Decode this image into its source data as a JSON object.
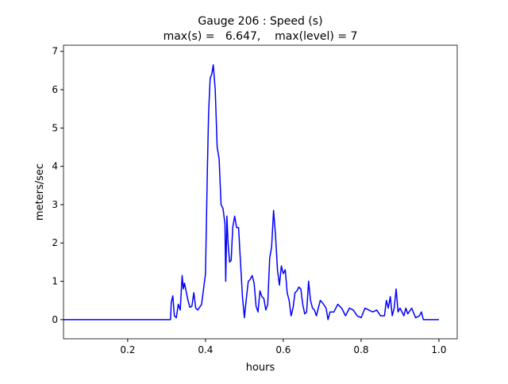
{
  "chart_data": {
    "type": "line",
    "title": [
      "Gauge 206 : Speed (s)",
      "max(s) =   6.647,    max(level) = 7"
    ],
    "xlabel": "hours",
    "ylabel": "meters/sec",
    "x": [
      0.035,
      0.31,
      0.312,
      0.316,
      0.32,
      0.325,
      0.33,
      0.335,
      0.34,
      0.343,
      0.346,
      0.35,
      0.355,
      0.36,
      0.365,
      0.37,
      0.375,
      0.38,
      0.39,
      0.395,
      0.4,
      0.405,
      0.408,
      0.412,
      0.416,
      0.42,
      0.425,
      0.43,
      0.435,
      0.44,
      0.445,
      0.45,
      0.452,
      0.455,
      0.458,
      0.462,
      0.466,
      0.47,
      0.475,
      0.48,
      0.485,
      0.49,
      0.495,
      0.5,
      0.505,
      0.51,
      0.515,
      0.52,
      0.525,
      0.53,
      0.535,
      0.54,
      0.545,
      0.55,
      0.555,
      0.56,
      0.565,
      0.57,
      0.575,
      0.58,
      0.585,
      0.59,
      0.595,
      0.6,
      0.605,
      0.61,
      0.615,
      0.62,
      0.625,
      0.63,
      0.635,
      0.64,
      0.645,
      0.65,
      0.655,
      0.66,
      0.665,
      0.67,
      0.675,
      0.68,
      0.685,
      0.69,
      0.695,
      0.7,
      0.71,
      0.715,
      0.72,
      0.73,
      0.74,
      0.75,
      0.76,
      0.77,
      0.78,
      0.79,
      0.8,
      0.81,
      0.82,
      0.83,
      0.84,
      0.85,
      0.86,
      0.865,
      0.87,
      0.875,
      0.88,
      0.885,
      0.89,
      0.895,
      0.9,
      0.91,
      0.915,
      0.92,
      0.93,
      0.94,
      0.95,
      0.955,
      0.96,
      0.97,
      1.0
    ],
    "series": [
      {
        "color": "#0000ff",
        "values": [
          0,
          0,
          0.45,
          0.62,
          0.1,
          0.05,
          0.4,
          0.25,
          1.15,
          0.8,
          0.95,
          0.75,
          0.5,
          0.32,
          0.35,
          0.7,
          0.3,
          0.25,
          0.4,
          0.8,
          1.2,
          4.0,
          5.4,
          6.3,
          6.4,
          6.647,
          6.0,
          4.5,
          4.2,
          3.0,
          2.9,
          2.5,
          1.0,
          2.7,
          2.0,
          1.5,
          1.55,
          2.4,
          2.7,
          2.4,
          2.4,
          1.5,
          0.6,
          0.05,
          0.55,
          1.0,
          1.05,
          1.15,
          0.95,
          0.35,
          0.2,
          0.75,
          0.6,
          0.55,
          0.25,
          0.4,
          1.6,
          1.9,
          2.85,
          2.2,
          1.3,
          0.9,
          1.4,
          1.2,
          1.3,
          0.7,
          0.5,
          0.1,
          0.3,
          0.7,
          0.75,
          0.85,
          0.8,
          0.4,
          0.15,
          0.2,
          1.0,
          0.5,
          0.3,
          0.25,
          0.1,
          0.3,
          0.5,
          0.45,
          0.3,
          0.0,
          0.2,
          0.2,
          0.4,
          0.3,
          0.1,
          0.3,
          0.25,
          0.1,
          0.05,
          0.3,
          0.25,
          0.2,
          0.25,
          0.1,
          0.1,
          0.5,
          0.3,
          0.6,
          0.1,
          0.3,
          0.8,
          0.2,
          0.3,
          0.1,
          0.3,
          0.15,
          0.3,
          0.05,
          0.1,
          0.2,
          0,
          0,
          0
        ]
      }
    ],
    "xlim": [
      0.035,
      1.047
    ],
    "ylim": [
      -0.5,
      7.16
    ],
    "xticks": [
      0.2,
      0.4,
      0.6,
      0.8,
      {
        "value": 1,
        "label": "1.0"
      }
    ],
    "yticks": [
      0,
      1,
      2,
      3,
      4,
      5,
      6,
      7
    ]
  }
}
